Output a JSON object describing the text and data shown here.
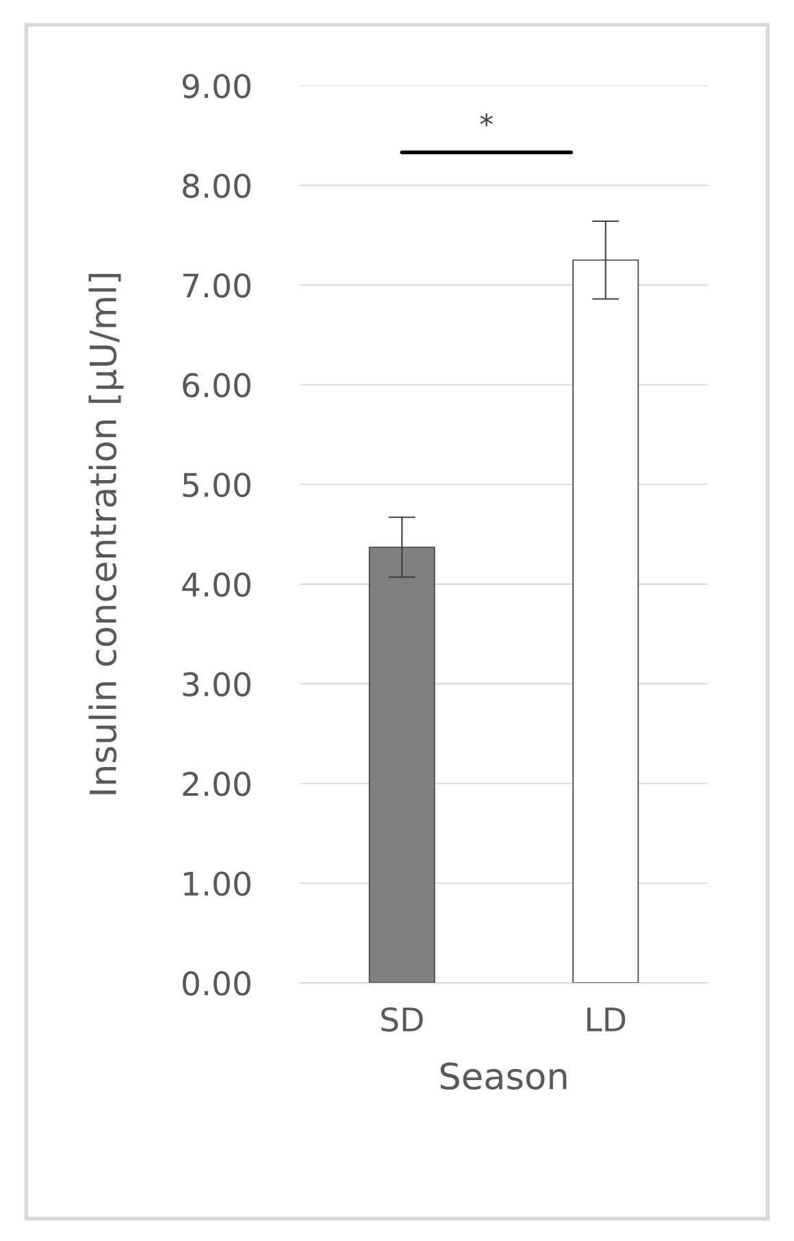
{
  "chart_data": {
    "type": "bar",
    "xlabel": "Season",
    "ylabel": "Insulin concentration [µU/ml]",
    "categories": [
      "SD",
      "LD"
    ],
    "values": [
      4.37,
      7.25
    ],
    "errors": [
      0.3,
      0.39
    ],
    "colors": [
      "#808080",
      "#ffffff"
    ],
    "ylim": [
      0,
      9
    ],
    "yticks": [
      {
        "value": 0,
        "label": "0.00"
      },
      {
        "value": 1,
        "label": "1.00"
      },
      {
        "value": 2,
        "label": "2.00"
      },
      {
        "value": 3,
        "label": "3.00"
      },
      {
        "value": 4,
        "label": "4.00"
      },
      {
        "value": 5,
        "label": "5.00"
      },
      {
        "value": 6,
        "label": "6.00"
      },
      {
        "value": 7,
        "label": "7.00"
      },
      {
        "value": 8,
        "label": "8.00"
      },
      {
        "value": 9,
        "label": "9.00"
      }
    ],
    "grid": "y",
    "annotations": [
      "*"
    ]
  }
}
